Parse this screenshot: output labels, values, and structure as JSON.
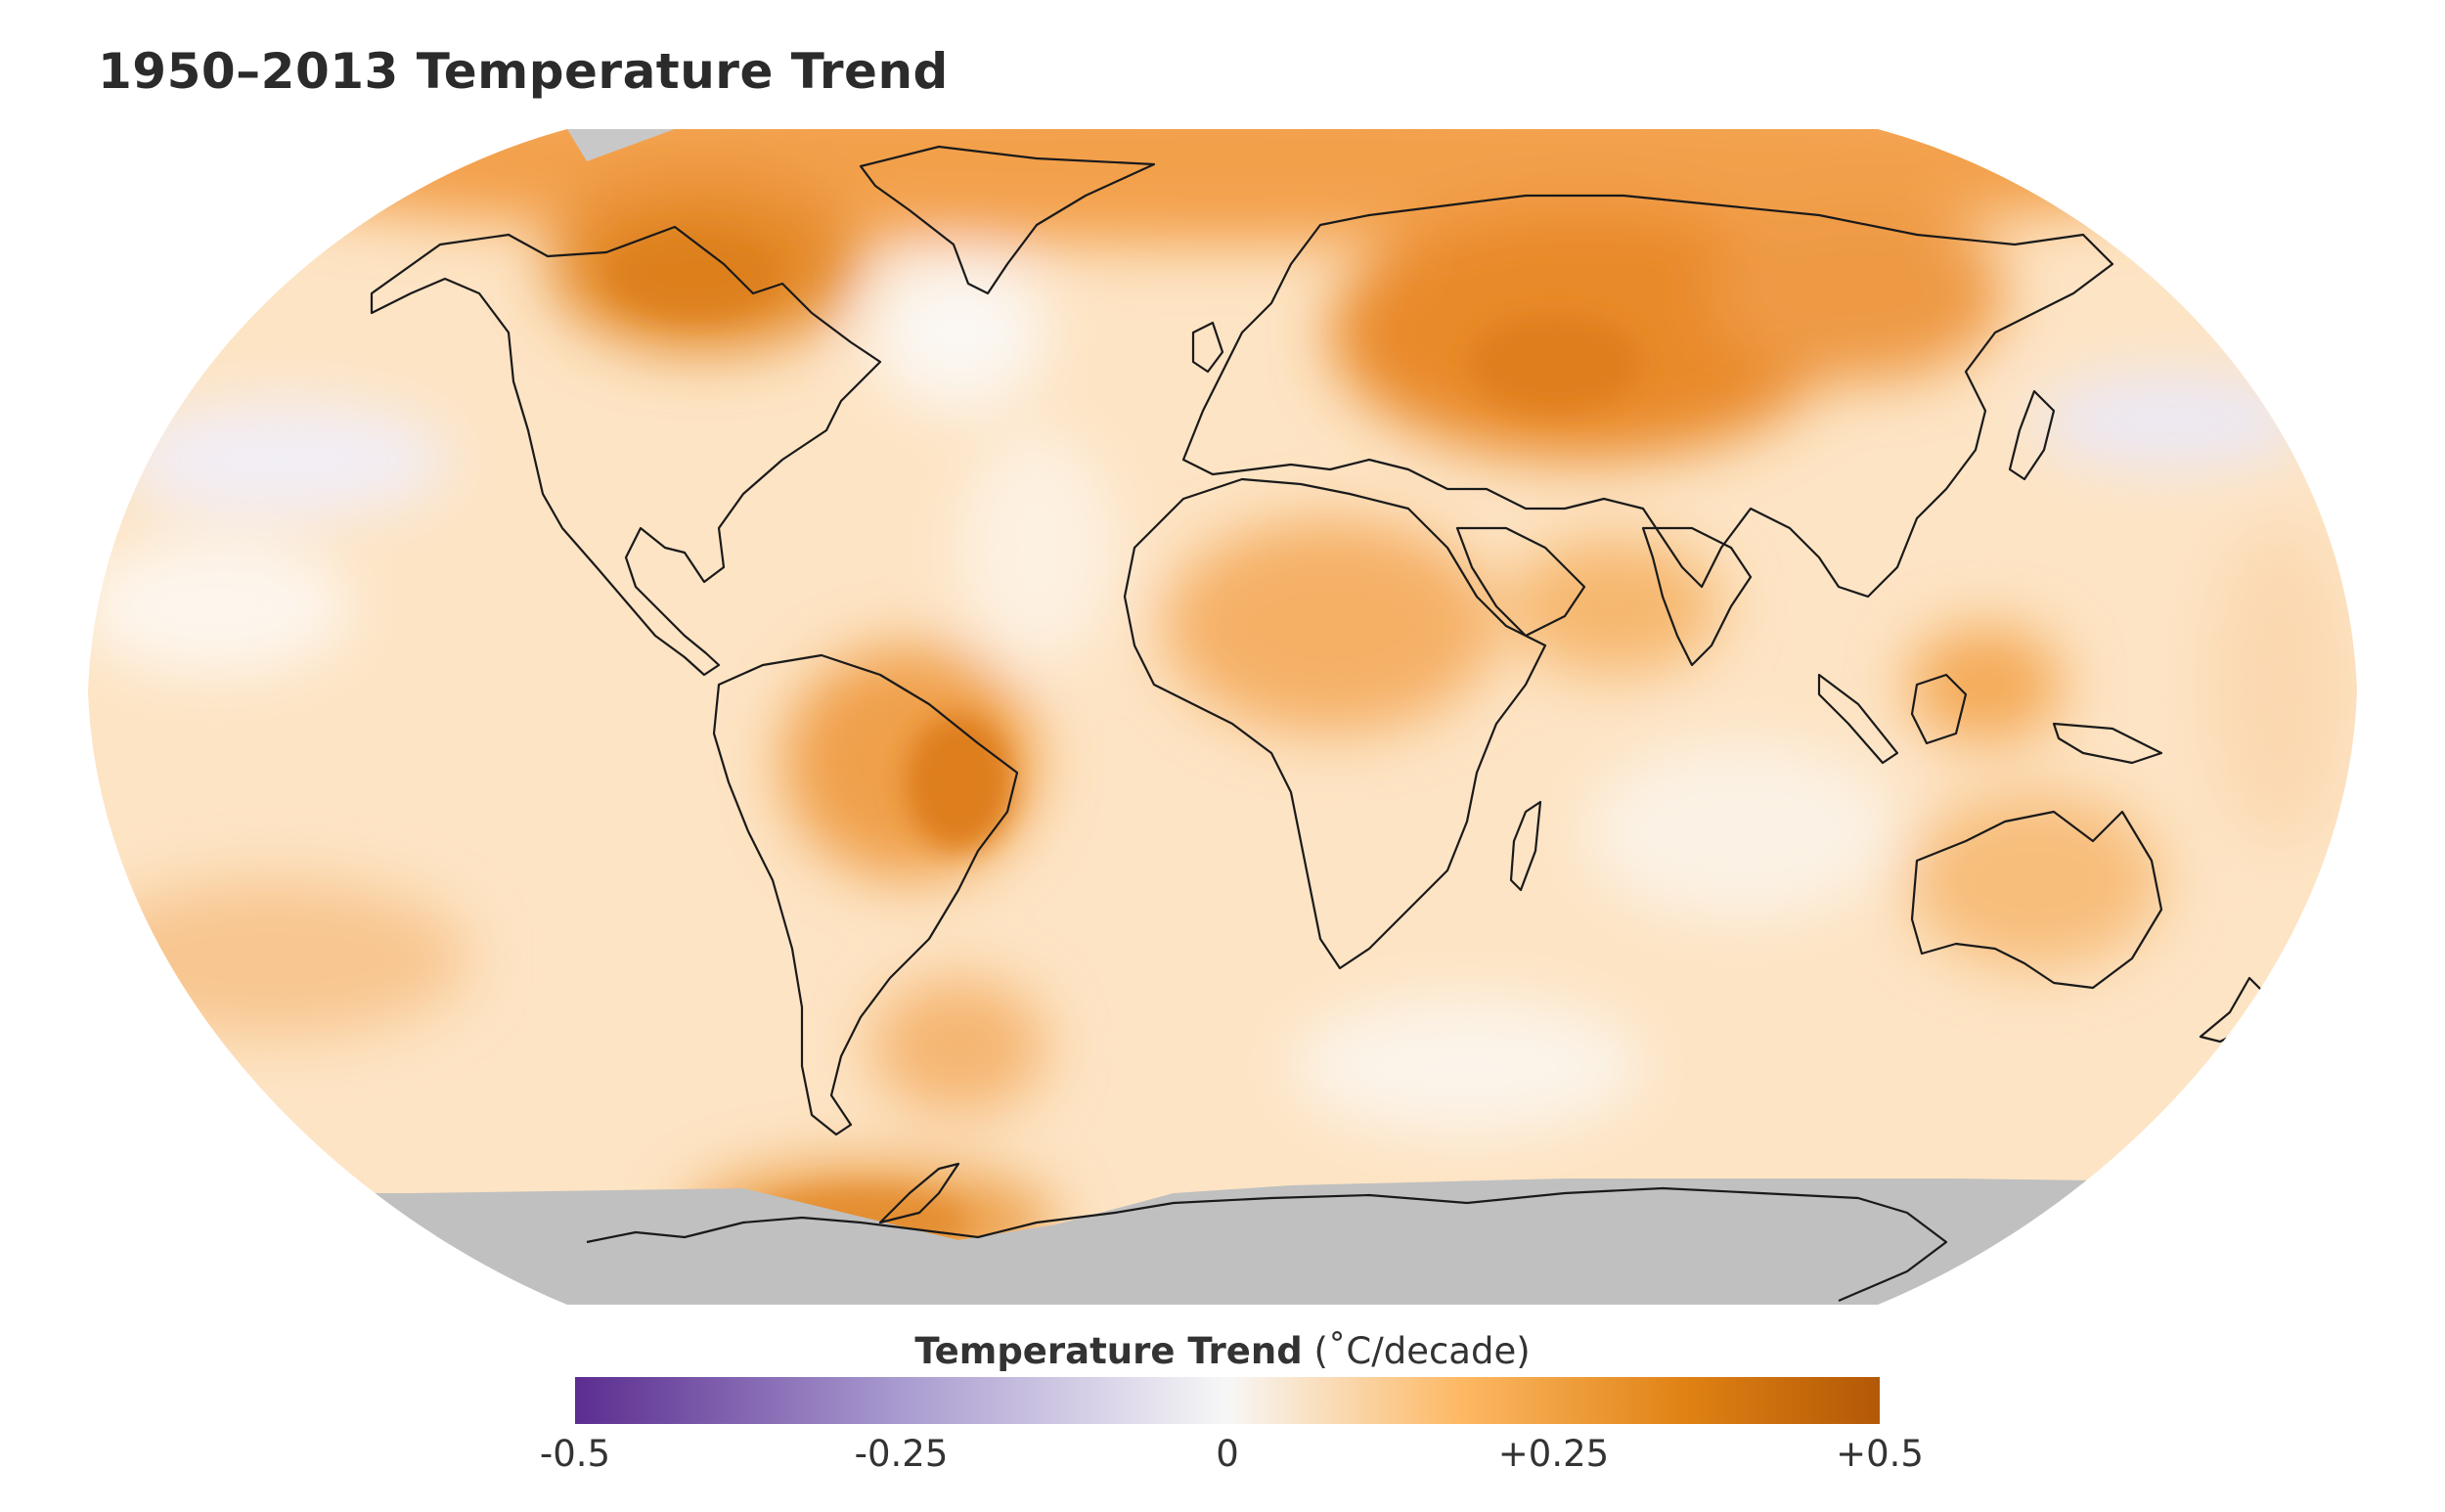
{
  "title": "1950–2013 Temperature Trend",
  "legend": {
    "title_bold": "Temperature Trend",
    "title_unit": "(˚C/decade)",
    "min": -0.5,
    "max": 0.5,
    "ticks": [
      {
        "label": "-0.5",
        "value": -0.5
      },
      {
        "label": "-0.25",
        "value": -0.25
      },
      {
        "label": "0",
        "value": 0
      },
      {
        "label": "+0.25",
        "value": 0.25
      },
      {
        "label": "+0.5",
        "value": 0.5
      }
    ],
    "colors": {
      "min": "#5b2d90",
      "low": "#a99bd0",
      "zero": "#f7f7f7",
      "mid_high": "#fdb863",
      "high": "#e08214",
      "max": "#b35806"
    }
  },
  "map": {
    "projection": "Robinson",
    "no_data_color": "#c0c0c0",
    "ocean_base_color": "#fde2bf",
    "coastline_color": "#1a1a1a"
  }
}
